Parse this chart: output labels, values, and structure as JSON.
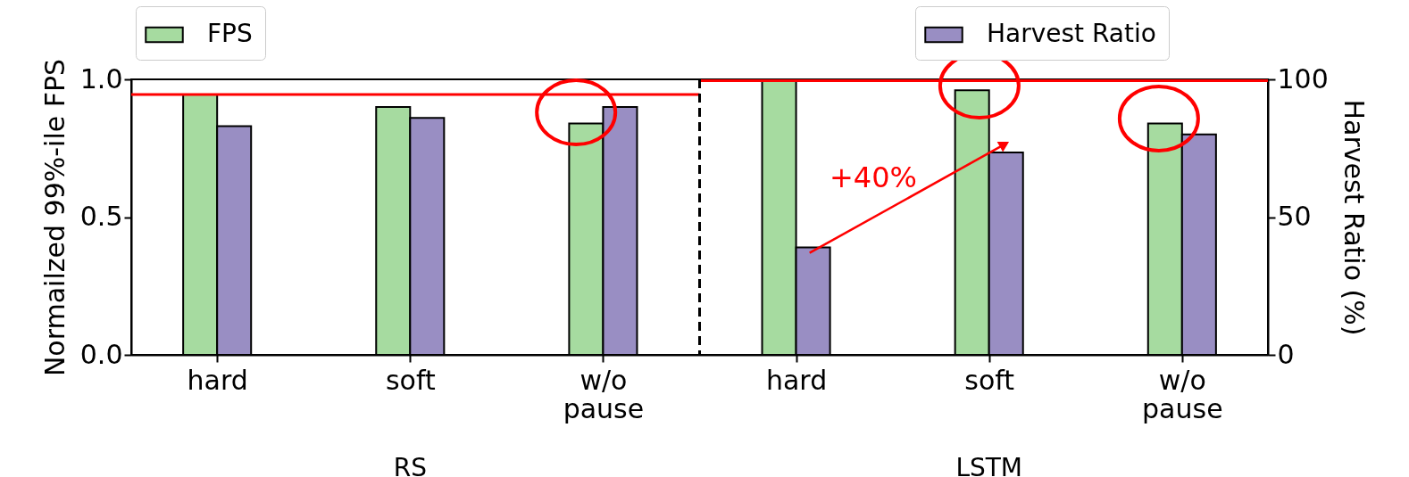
{
  "chart_data": {
    "type": "bar",
    "categories": [
      "hard",
      "soft",
      "w/o pause",
      "hard",
      "soft",
      "w/o pause"
    ],
    "ylabel": "Normailzed 99%-ile FPS",
    "y2label": "Harvest Ratio (%)",
    "series": [
      {
        "name": "FPS",
        "color": "#a6dba0",
        "values": [
          0.945,
          0.9,
          0.84,
          1.0,
          0.96,
          0.84
        ]
      },
      {
        "name": "Harvest Ratio",
        "color": "#998ec3",
        "axis": "y2",
        "values": [
          83,
          86,
          90,
          39,
          73.5,
          80
        ]
      }
    ],
    "ylim": [
      0,
      1
    ],
    "yticks": [
      {
        "value": 0,
        "label": "0.0"
      },
      {
        "value": 0.5,
        "label": "0.5"
      },
      {
        "value": 1,
        "label": "1.0"
      }
    ],
    "y2lim": [
      0,
      100
    ],
    "y2ticks": [
      0,
      50,
      100
    ],
    "ref_lines": [
      {
        "axis": "y",
        "value": 0.945,
        "color": "#ff0000"
      },
      {
        "axis": "y2",
        "value": 99.5,
        "color": "#ff0000"
      }
    ],
    "annotations": [
      "RS",
      "LSTM",
      "+40%"
    ],
    "legend": "top"
  }
}
